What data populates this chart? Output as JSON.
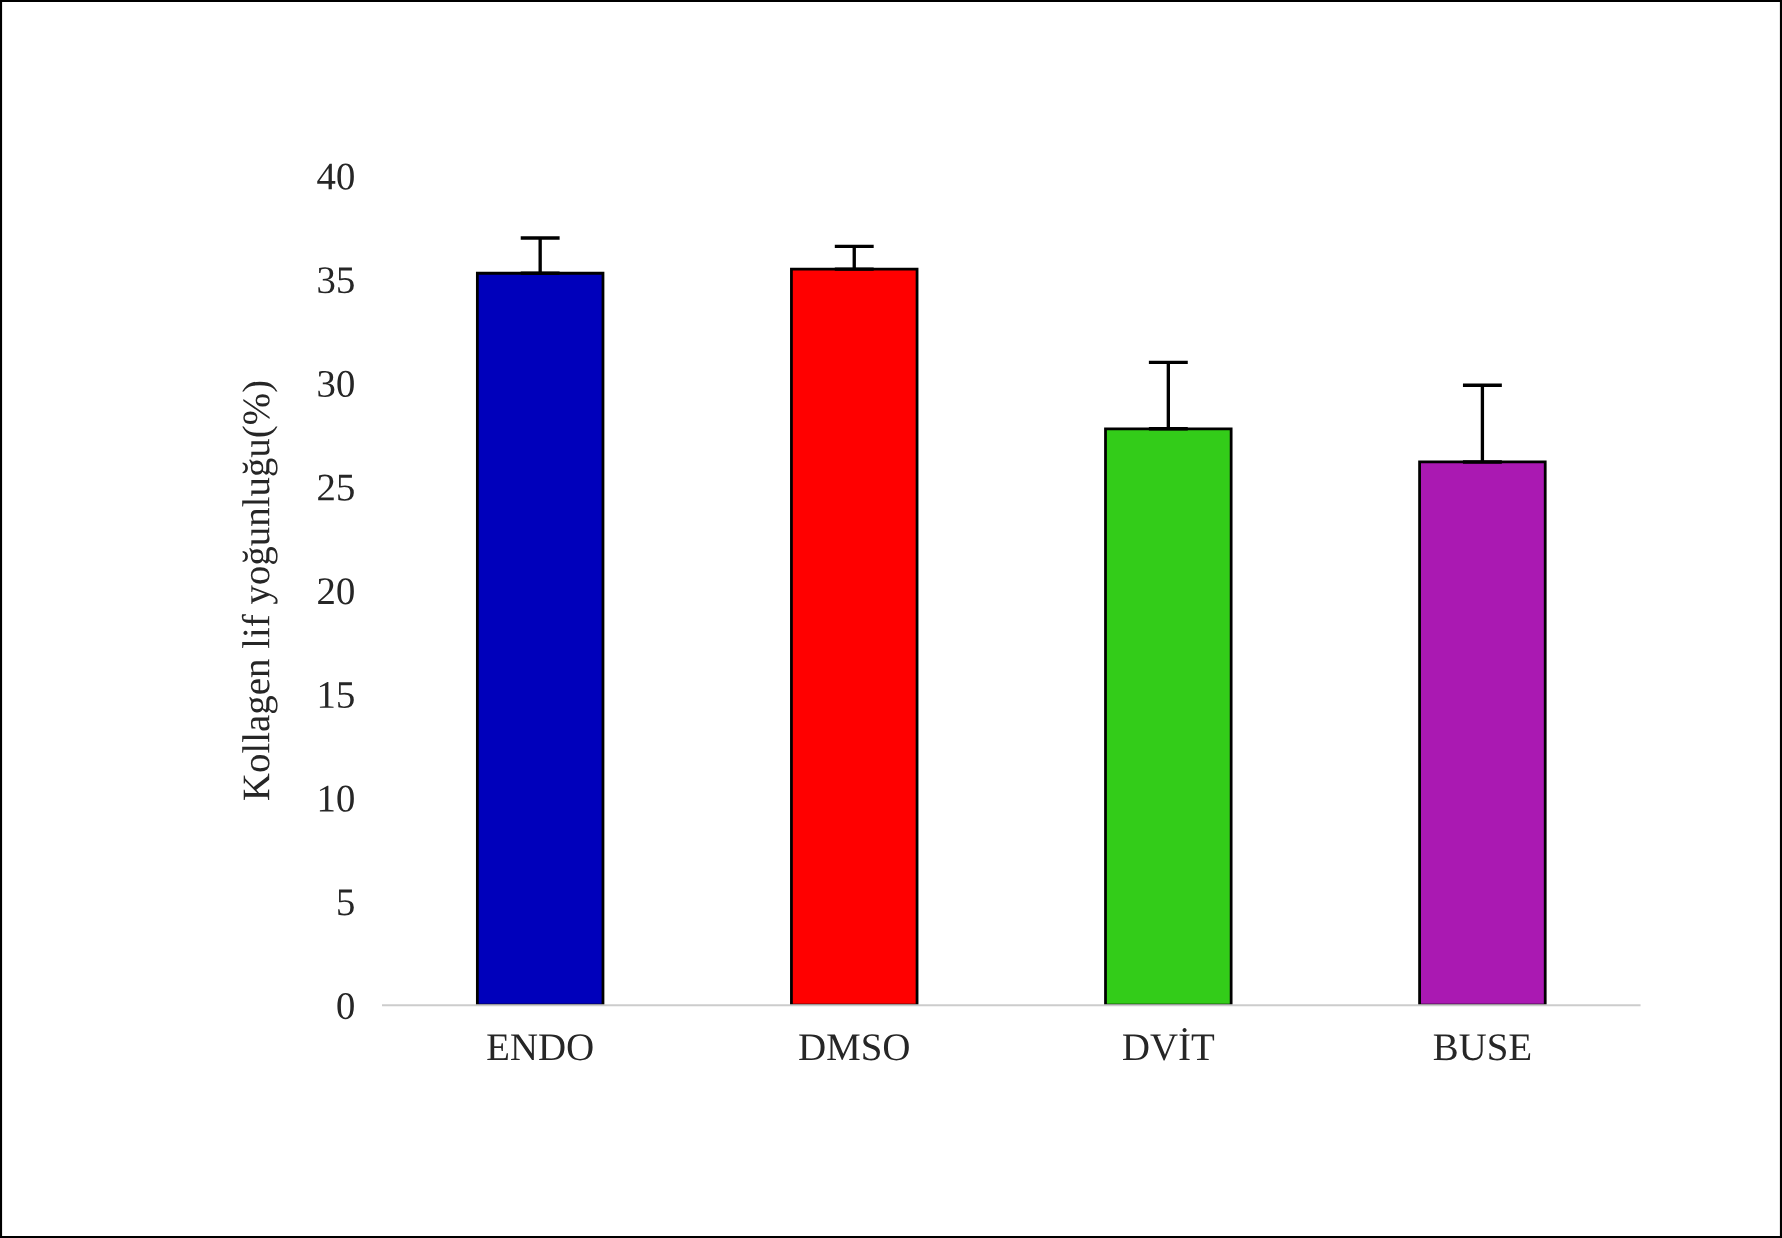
{
  "chart_data": {
    "type": "bar",
    "ylabel": "Kollagen lif yoğunluğu(%)",
    "categories": [
      "ENDO",
      "DMSO",
      "DVİT",
      "BUSE"
    ],
    "values": [
      35.3,
      35.5,
      27.8,
      26.2
    ],
    "colors": [
      "#0000bb",
      "#ff0000",
      "#33cc19",
      "#aa19b2"
    ],
    "errors": [
      [
        35.3,
        37.0
      ],
      [
        35.5,
        36.6
      ],
      [
        27.8,
        31.0
      ],
      [
        26.2,
        29.9
      ]
    ],
    "ylim": [
      0,
      40
    ],
    "yticks": [
      0,
      5,
      10,
      15,
      20,
      25,
      30,
      35,
      40
    ],
    "grid": false,
    "legend": false
  }
}
